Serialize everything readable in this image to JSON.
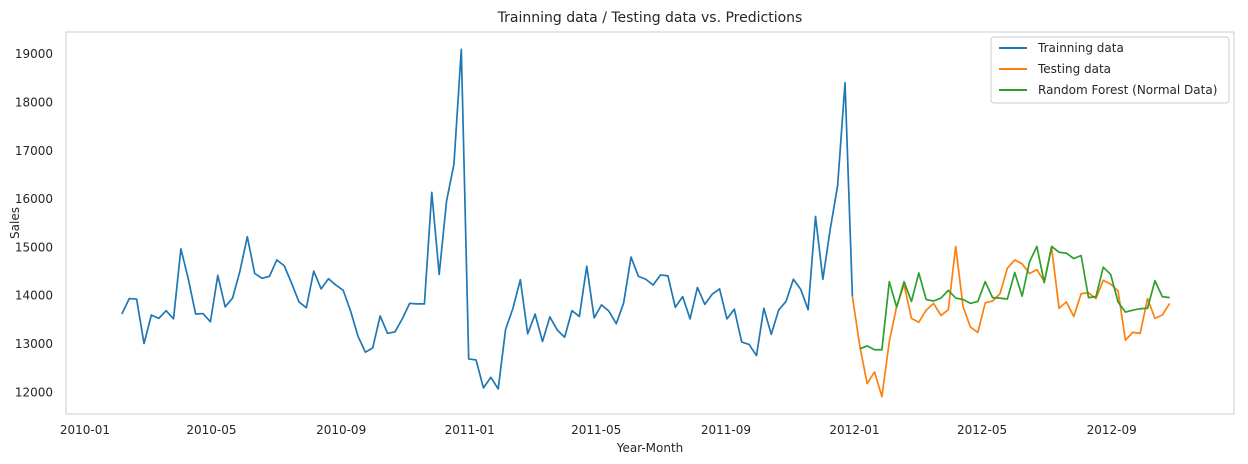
{
  "chart_data": {
    "type": "line",
    "title": "Trainning data / Testing data vs. Predictions",
    "xlabel": "Year-Month",
    "ylabel": "Sales",
    "x_ticks": [
      "2010-01",
      "2010-05",
      "2010-09",
      "2011-01",
      "2011-05",
      "2011-09",
      "2012-01",
      "2012-05",
      "2012-09"
    ],
    "y_ticks": [
      12000,
      13000,
      14000,
      15000,
      16000,
      17000,
      18000,
      19000
    ],
    "ylim": [
      11550,
      19460
    ],
    "grid": false,
    "legend_position": "top-right",
    "series": [
      {
        "name": "Trainning data",
        "color": "#1f77b4",
        "dates": [
          "2010-02-05",
          "2010-02-12",
          "2010-02-19",
          "2010-02-26",
          "2010-03-05",
          "2010-03-12",
          "2010-03-19",
          "2010-03-26",
          "2010-04-02",
          "2010-04-09",
          "2010-04-16",
          "2010-04-23",
          "2010-04-30",
          "2010-05-07",
          "2010-05-14",
          "2010-05-21",
          "2010-05-28",
          "2010-06-04",
          "2010-06-11",
          "2010-06-18",
          "2010-06-25",
          "2010-07-02",
          "2010-07-09",
          "2010-07-16",
          "2010-07-23",
          "2010-07-30",
          "2010-08-06",
          "2010-08-13",
          "2010-08-20",
          "2010-08-27",
          "2010-09-03",
          "2010-09-10",
          "2010-09-17",
          "2010-09-24",
          "2010-10-01",
          "2010-10-08",
          "2010-10-15",
          "2010-10-22",
          "2010-10-29",
          "2010-11-05",
          "2010-11-12",
          "2010-11-19",
          "2010-11-26",
          "2010-12-03",
          "2010-12-10",
          "2010-12-17",
          "2010-12-24",
          "2010-12-31",
          "2011-01-07",
          "2011-01-14",
          "2011-01-21",
          "2011-01-28",
          "2011-02-04",
          "2011-02-11",
          "2011-02-18",
          "2011-02-25",
          "2011-03-04",
          "2011-03-11",
          "2011-03-18",
          "2011-03-25",
          "2011-04-01",
          "2011-04-08",
          "2011-04-15",
          "2011-04-22",
          "2011-04-29",
          "2011-05-06",
          "2011-05-13",
          "2011-05-20",
          "2011-05-27",
          "2011-06-03",
          "2011-06-10",
          "2011-06-17",
          "2011-06-24",
          "2011-07-01",
          "2011-07-08",
          "2011-07-15",
          "2011-07-22",
          "2011-07-29",
          "2011-08-05",
          "2011-08-12",
          "2011-08-19",
          "2011-08-26",
          "2011-09-02",
          "2011-09-09",
          "2011-09-16",
          "2011-09-23",
          "2011-09-30",
          "2011-10-07",
          "2011-10-14",
          "2011-10-21",
          "2011-10-28",
          "2011-11-04",
          "2011-11-11",
          "2011-11-18",
          "2011-11-25",
          "2011-12-02",
          "2011-12-09",
          "2011-12-16",
          "2011-12-23",
          "2011-12-30"
        ],
        "values": [
          13620,
          13940,
          13930,
          13010,
          13600,
          13530,
          13690,
          13520,
          14970,
          14350,
          13620,
          13630,
          13460,
          14420,
          13770,
          13950,
          14510,
          15220,
          14460,
          14360,
          14400,
          14740,
          14620,
          14260,
          13870,
          13750,
          14510,
          14140,
          14350,
          14220,
          14110,
          13680,
          13160,
          12830,
          12920,
          13580,
          13220,
          13250,
          13520,
          13840,
          13830,
          13830,
          16140,
          14440,
          15960,
          16720,
          19100,
          12690,
          12670,
          12090,
          12310,
          12070,
          13300,
          13740,
          14330,
          13210,
          13620,
          13050,
          13560,
          13290,
          13140,
          13690,
          13570,
          14610,
          13540,
          13810,
          13680,
          13420,
          13850,
          14800,
          14400,
          14340,
          14220,
          14430,
          14410,
          13760,
          13980,
          13520,
          14170,
          13820,
          14030,
          14140,
          13520,
          13720,
          13040,
          12990,
          12760,
          13740,
          13200,
          13700,
          13880,
          14340,
          14130,
          13710,
          15640,
          14340,
          15380,
          16280,
          18410,
          13980
        ],
        "label": "Trainning data"
      },
      {
        "name": "Testing data",
        "color": "#ff7f0e",
        "dates": [
          "2011-12-30",
          "2012-01-06",
          "2012-01-13",
          "2012-01-20",
          "2012-01-27",
          "2012-02-03",
          "2012-02-10",
          "2012-02-17",
          "2012-02-24",
          "2012-03-02",
          "2012-03-09",
          "2012-03-16",
          "2012-03-23",
          "2012-03-30",
          "2012-04-06",
          "2012-04-13",
          "2012-04-20",
          "2012-04-27",
          "2012-05-04",
          "2012-05-11",
          "2012-05-18",
          "2012-05-25",
          "2012-06-01",
          "2012-06-08",
          "2012-06-15",
          "2012-06-22",
          "2012-06-29",
          "2012-07-06",
          "2012-07-13",
          "2012-07-20",
          "2012-07-27",
          "2012-08-03",
          "2012-08-10",
          "2012-08-17",
          "2012-08-24",
          "2012-08-31",
          "2012-09-07",
          "2012-09-14",
          "2012-09-21",
          "2012-09-28",
          "2012-10-05",
          "2012-10-12",
          "2012-10-19",
          "2012-10-26"
        ],
        "values": [
          13980,
          12960,
          12180,
          12420,
          11910,
          13050,
          13780,
          14230,
          13530,
          13450,
          13700,
          13840,
          13590,
          13710,
          15020,
          13770,
          13350,
          13240,
          13850,
          13890,
          14040,
          14570,
          14740,
          14660,
          14460,
          14540,
          14290,
          15000,
          13740,
          13870,
          13570,
          14040,
          14060,
          13940,
          14320,
          14240,
          14100,
          13080,
          13240,
          13220,
          13940,
          13530,
          13600,
          13840
        ],
        "label": "Testing data"
      },
      {
        "name": "Random Forest (Normal Data)",
        "color": "#2ca02c",
        "dates": [
          "2012-01-06",
          "2012-01-13",
          "2012-01-20",
          "2012-01-27",
          "2012-02-03",
          "2012-02-10",
          "2012-02-17",
          "2012-02-24",
          "2012-03-02",
          "2012-03-09",
          "2012-03-16",
          "2012-03-23",
          "2012-03-30",
          "2012-04-06",
          "2012-04-13",
          "2012-04-20",
          "2012-04-27",
          "2012-05-04",
          "2012-05-11",
          "2012-05-18",
          "2012-05-25",
          "2012-06-01",
          "2012-06-08",
          "2012-06-15",
          "2012-06-22",
          "2012-06-29",
          "2012-07-06",
          "2012-07-13",
          "2012-07-20",
          "2012-07-27",
          "2012-08-03",
          "2012-08-10",
          "2012-08-17",
          "2012-08-24",
          "2012-08-31",
          "2012-09-07",
          "2012-09-14",
          "2012-09-21",
          "2012-09-28",
          "2012-10-05",
          "2012-10-12",
          "2012-10-19",
          "2012-10-26"
        ],
        "values": [
          12900,
          12960,
          12880,
          12880,
          14290,
          13760,
          14290,
          13880,
          14470,
          13920,
          13890,
          13950,
          14110,
          13950,
          13920,
          13840,
          13880,
          14290,
          13960,
          13950,
          13930,
          14480,
          13990,
          14700,
          15020,
          14270,
          15020,
          14900,
          14880,
          14770,
          14830,
          13960,
          13980,
          14590,
          14440,
          13870,
          13660,
          13700,
          13730,
          13740,
          14310,
          13980,
          13960
        ],
        "label": "Random Forest (Normal Data)"
      }
    ]
  }
}
